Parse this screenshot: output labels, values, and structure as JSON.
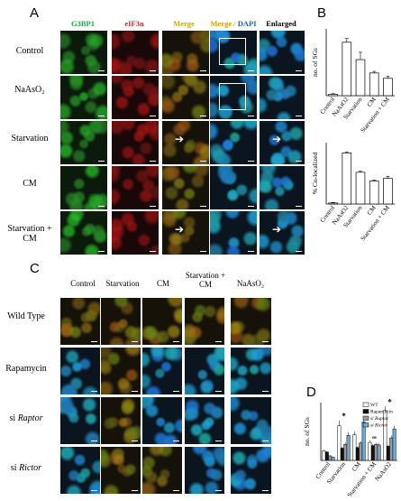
{
  "panelA": {
    "label": "A",
    "columns": [
      {
        "text": "G3BP1",
        "color": "#1aa84a"
      },
      {
        "text": "eIF3n",
        "color": "#d9262c"
      },
      {
        "text": "Merge",
        "color": "#d6a400"
      },
      {
        "text": "Merge / DAPI",
        "color": "#d6a400"
      },
      {
        "text": "Enlarged",
        "color": "#000000"
      }
    ],
    "rows": [
      "Control",
      "NaAsO₂",
      "Starvation",
      "CM",
      "Starvation + CM"
    ]
  },
  "panelB": {
    "label": "B",
    "chart_data": [
      {
        "type": "bar",
        "categories": [
          "Control",
          "NaAsO2",
          "Starvation",
          "CM",
          "Starvation + CM"
        ],
        "values": [
          10,
          400,
          270,
          170,
          130
        ],
        "errors": [
          5,
          28,
          55,
          12,
          15
        ],
        "ylabel": "no. of SGs",
        "ylim": [
          0,
          500
        ],
        "yticks": []
      },
      {
        "type": "bar",
        "categories": [
          "Control",
          "NaAsO2",
          "Starvation",
          "CM",
          "Starvation + CM"
        ],
        "values": [
          2,
          100,
          62,
          45,
          50
        ],
        "errors": [
          1,
          2,
          2,
          2,
          4
        ],
        "ylabel": "% Co-localized",
        "ylim": [
          0,
          120
        ],
        "yticks": []
      }
    ]
  },
  "panelC": {
    "label": "C",
    "columns": [
      "Control",
      "Starvation",
      "CM",
      "Starvation + CM",
      "NaAsO₂"
    ],
    "rows": [
      "Wild Type",
      "Rapamycin",
      "si Raptor",
      "si Rictor"
    ]
  },
  "panelD": {
    "label": "D",
    "chart_data": {
      "type": "bar",
      "categories": [
        "Control",
        "Starvation",
        "CM",
        "Starvation + CM",
        "NaAsO2"
      ],
      "series": [
        {
          "name": "WT",
          "color": "#ffffff",
          "values": [
            75,
            270,
            200,
            140,
            390
          ],
          "errors": [
            8,
            40,
            25,
            15,
            30
          ]
        },
        {
          "name": "Rapamycin",
          "color": "#111111",
          "values": [
            65,
            95,
            100,
            115,
            110
          ],
          "errors": [
            6,
            10,
            10,
            12,
            12
          ]
        },
        {
          "name": "si Raptor",
          "color": "#9a9a9a",
          "values": [
            35,
            125,
            135,
            125,
            175
          ],
          "errors": [
            5,
            15,
            15,
            15,
            20
          ]
        },
        {
          "name": "si Rictor",
          "color": "#6fa8dc",
          "values": [
            25,
            195,
            300,
            120,
            245
          ],
          "errors": [
            5,
            25,
            30,
            15,
            25
          ]
        }
      ],
      "ylabel": "no. of SGs",
      "ylim": [
        0,
        450
      ],
      "annotations": [
        "*",
        "ns",
        "*"
      ]
    }
  }
}
